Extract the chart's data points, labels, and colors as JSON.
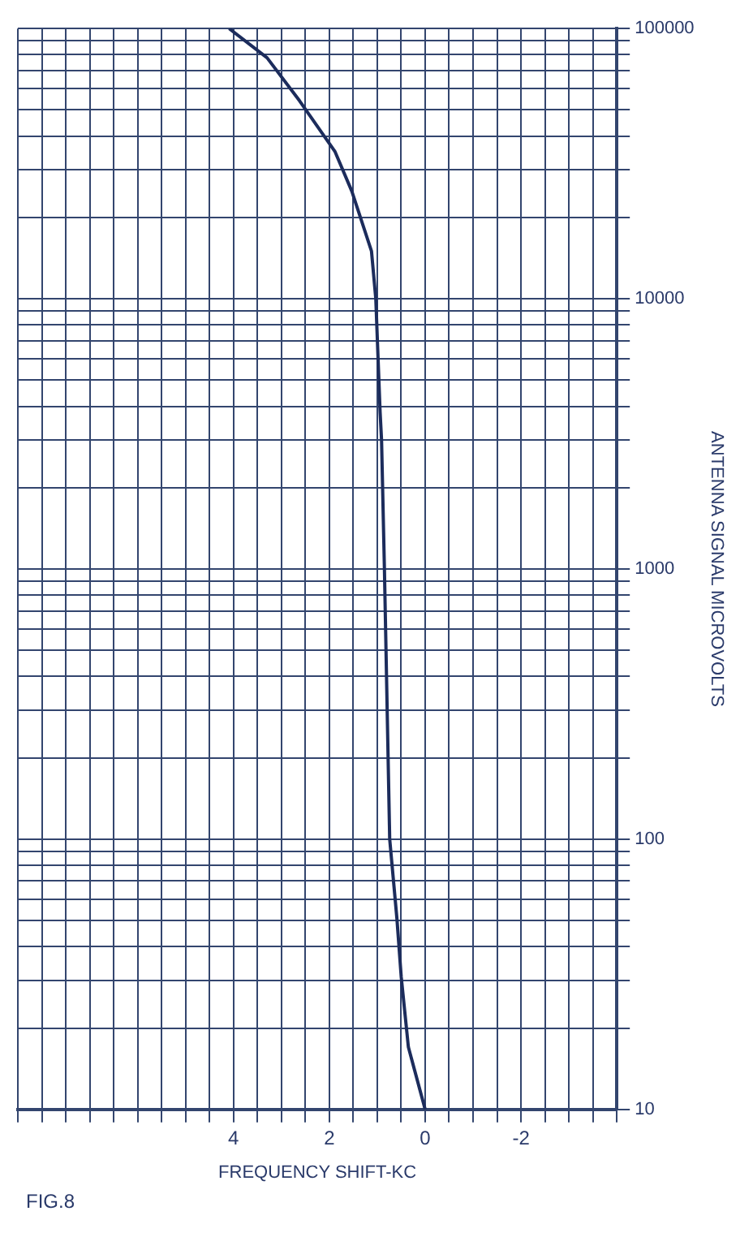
{
  "chart_data": {
    "type": "line",
    "xlabel": "FREQUENCY SHIFT-KC",
    "ylabel": "ANTENNA SIGNAL MICROVOLTS",
    "annotations": [
      "FIG.8"
    ],
    "x": [
      0,
      0.35,
      0.5,
      0.59,
      0.74,
      0.85,
      0.91,
      0.94,
      1.03,
      1.12,
      1.53,
      1.88,
      2.62,
      3.3,
      4.09
    ],
    "series": [
      {
        "color": "#1c2c5c",
        "values": [
          10,
          17,
          31,
          51,
          100,
          1000,
          3000,
          3800,
          10000,
          15000,
          25000,
          35000,
          54000,
          78000,
          100000
        ]
      }
    ],
    "xlim": [
      8.5,
      -4
    ],
    "xticks": [
      {
        "value": 8.5,
        "label": null
      },
      {
        "value": 8,
        "label": null
      },
      {
        "value": 7.5,
        "label": null
      },
      {
        "value": 7,
        "label": null
      },
      {
        "value": 6.5,
        "label": null
      },
      {
        "value": 6,
        "label": null
      },
      {
        "value": 5.5,
        "label": null
      },
      {
        "value": 5,
        "label": null
      },
      {
        "value": 4.5,
        "label": null
      },
      4,
      {
        "value": 3.5,
        "label": null
      },
      {
        "value": 3,
        "label": null
      },
      {
        "value": 2.5,
        "label": null
      },
      2,
      {
        "value": 1.5,
        "label": null
      },
      {
        "value": 1,
        "label": null
      },
      {
        "value": 0.5,
        "label": null
      },
      0,
      {
        "value": -0.5,
        "label": null
      },
      {
        "value": -1,
        "label": null
      },
      {
        "value": -1.5,
        "label": null
      },
      -2,
      {
        "value": -2.5,
        "label": null
      },
      {
        "value": -3,
        "label": null
      },
      {
        "value": -3.5,
        "label": null
      },
      {
        "value": -4,
        "label": null
      }
    ],
    "ylim": [
      10,
      100000
    ],
    "log": "y",
    "yticks": [
      10,
      {
        "value": 20,
        "label": null
      },
      {
        "value": 30,
        "label": null
      },
      {
        "value": 40,
        "label": null
      },
      {
        "value": 50,
        "label": null
      },
      {
        "value": 60,
        "label": null
      },
      {
        "value": 70,
        "label": null
      },
      {
        "value": 80,
        "label": null
      },
      {
        "value": 90,
        "label": null
      },
      100,
      {
        "value": 200,
        "label": null
      },
      {
        "value": 300,
        "label": null
      },
      {
        "value": 400,
        "label": null
      },
      {
        "value": 500,
        "label": null
      },
      {
        "value": 600,
        "label": null
      },
      {
        "value": 700,
        "label": null
      },
      {
        "value": 800,
        "label": null
      },
      {
        "value": 900,
        "label": null
      },
      1000,
      {
        "value": 2000,
        "label": null
      },
      {
        "value": 3000,
        "label": null
      },
      {
        "value": 4000,
        "label": null
      },
      {
        "value": 5000,
        "label": null
      },
      {
        "value": 6000,
        "label": null
      },
      {
        "value": 7000,
        "label": null
      },
      {
        "value": 8000,
        "label": null
      },
      {
        "value": 9000,
        "label": null
      },
      10000,
      {
        "value": 20000,
        "label": null
      },
      {
        "value": 30000,
        "label": null
      },
      {
        "value": 40000,
        "label": null
      },
      {
        "value": 50000,
        "label": null
      },
      {
        "value": 60000,
        "label": null
      },
      {
        "value": 70000,
        "label": null
      },
      {
        "value": 80000,
        "label": null
      },
      {
        "value": 90000,
        "label": null
      },
      100000
    ],
    "grid": true,
    "marker": "none",
    "line_style": "solid"
  }
}
